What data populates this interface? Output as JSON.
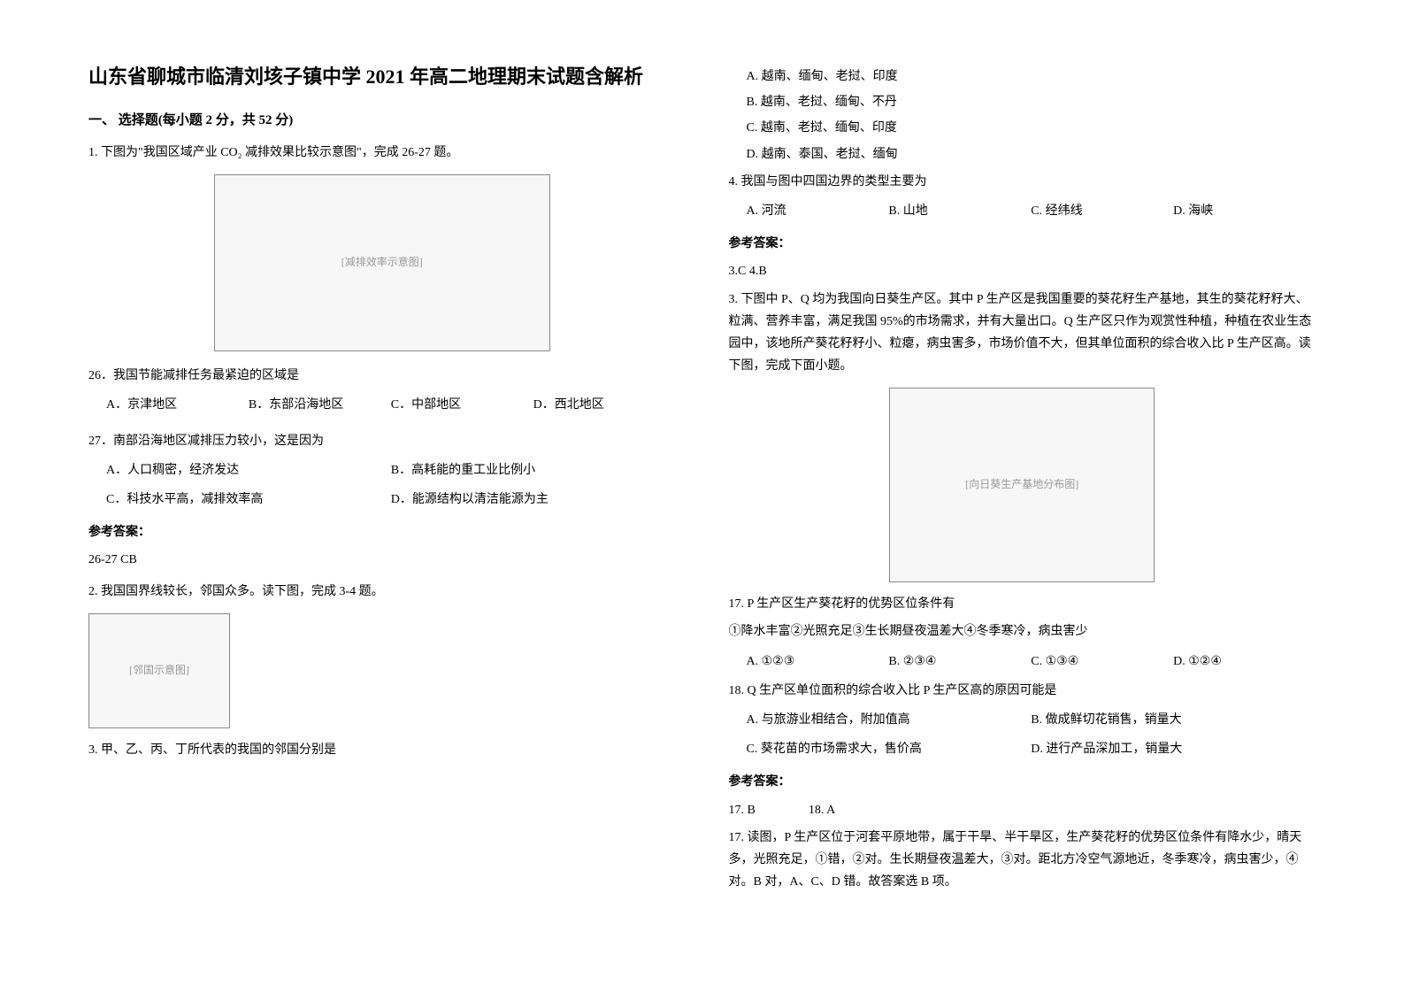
{
  "title": "山东省聊城市临清刘垓子镇中学 2021 年高二地理期末试题含解析",
  "section1_heading": "一、 选择题(每小题 2 分，共 52 分)",
  "q1_lead": "1. 下图为\"我国区域产业 CO₂ 减排效果比较示意图\"，完成 26-27 题。",
  "fig1_label": "[减排效率示意图]",
  "q26_text": "26．我国节能减排任务最紧迫的区域是",
  "q26_opts": {
    "A": "A．京津地区",
    "B": "B．东部沿海地区",
    "C": "C．中部地区",
    "D": "D．西北地区"
  },
  "q27_text": "27．南部沿海地区减排压力较小，这是因为",
  "q27_opts": {
    "A": "A．人口稠密，经济发达",
    "B": "B．高耗能的重工业比例小",
    "C": "C．科技水平高，减排效率高",
    "D": "D．能源结构以清洁能源为主"
  },
  "answer_heading": "参考答案：",
  "ans_26_27": "26-27 CB",
  "q2_lead": "2. 我国国界线较长，邻国众多。读下图，完成 3-4 题。",
  "fig2_label": "[邻国示意图]",
  "q3_text": "3. 甲、乙、丙、丁所代表的我国的邻国分别是",
  "q3_opts": {
    "A": "A. 越南、缅甸、老挝、印度",
    "B": "B. 越南、老挝、缅甸、不丹",
    "C": "C. 越南、老挝、缅甸、印度",
    "D": "D. 越南、泰国、老挝、缅甸"
  },
  "q4_text": "4. 我国与图中四国边界的类型主要为",
  "q4_opts": {
    "A": "A. 河流",
    "B": "B. 山地",
    "C": "C. 经纬线",
    "D": "D. 海峡"
  },
  "ans_3_4": "3.C  4.B",
  "q3b_lead": "3. 下图中 P、Q 均为我国向日葵生产区。其中 P 生产区是我国重要的葵花籽生产基地，其生的葵花籽籽大、粒满、营养丰富，满足我国 95%的市场需求，并有大量出口。Q 生产区只作为观赏性种植，种植在农业生态园中，该地所产葵花籽籽小、粒瘪，病虫害多，市场价值不大，但其单位面积的综合收入比 P 生产区高。读下图，完成下面小题。",
  "fig3_label": "[向日葵生产基地分布图]",
  "q17_text": "17.  P 生产区生产葵花籽的优势区位条件有",
  "q17_sub": "①降水丰富②光照充足③生长期昼夜温差大④冬季寒冷，病虫害少",
  "q17_opts": {
    "A": "A.  ①②③",
    "B": "B.  ②③④",
    "C": "C.  ①③④",
    "D": "D.  ①②④"
  },
  "q18_text": "18.  Q 生产区单位面积的综合收入比 P 生产区高的原因可能是",
  "q18_opts": {
    "A": "A.  与旅游业相结合，附加值高",
    "B": "B.  做成鲜切花销售，销量大",
    "C": "C.  葵花苗的市场需求大，售价高",
    "D": "D.  进行产品深加工，销量大"
  },
  "ans_17": "17.  B",
  "ans_18": "18.  A",
  "explain_17": "17.  读图，P 生产区位于河套平原地带，属于干旱、半干旱区，生产葵花籽的优势区位条件有降水少，晴天多，光照充足，①错，②对。生长期昼夜温差大，③对。距北方冷空气源地近，冬季寒冷，病虫害少，④对。B 对，A、C、D 错。故答案选 B 项。"
}
